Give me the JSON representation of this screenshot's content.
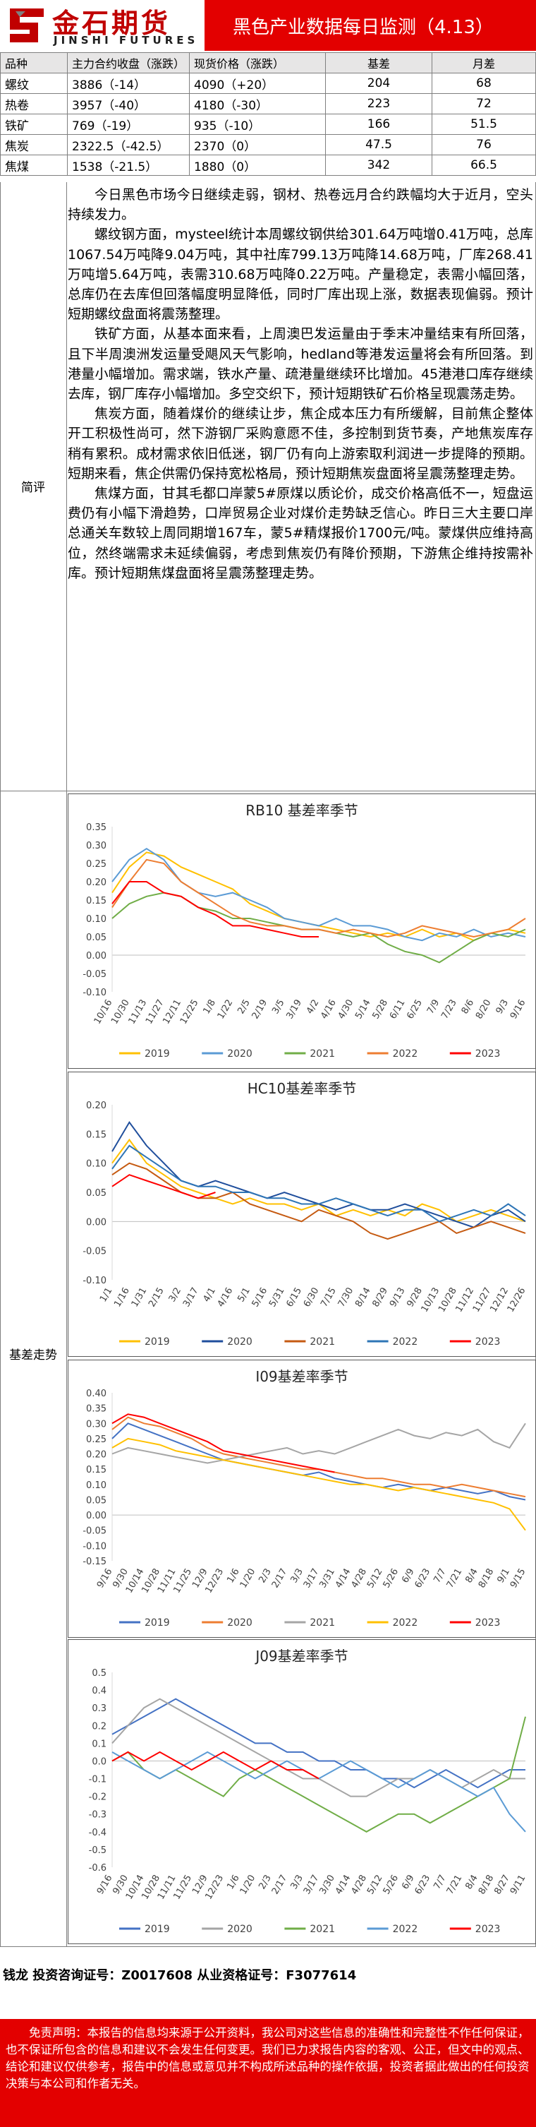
{
  "header": {
    "logo_cn": "金石期货",
    "logo_en": "JINSHI FUTURES",
    "title": "黑色产业数据每日监测（4.13）"
  },
  "price_table": {
    "headers": [
      "品种",
      "主力合约收盘（涨跌）",
      "现货价格（涨跌）",
      "基差",
      "月差"
    ],
    "rows": [
      [
        "螺纹",
        "3886（-14）",
        "4090（+20）",
        "204",
        "68"
      ],
      [
        "热卷",
        "3957（-40）",
        "4180（-30）",
        "223",
        "72"
      ],
      [
        "铁矿",
        "769（-19）",
        "935（-10）",
        "166",
        "51.5"
      ],
      [
        "焦炭",
        "2322.5（-42.5）",
        "2370（0）",
        "47.5",
        "76"
      ],
      [
        "焦煤",
        "1538（-21.5）",
        "1880（0）",
        "342",
        "66.5"
      ]
    ]
  },
  "section_labels": {
    "comment": "简评",
    "basis": "基差走势"
  },
  "commentary": [
    "今日黑色市场今日继续走弱，钢材、热卷远月合约跌幅均大于近月，空头持续发力。",
    "螺纹钢方面，mysteel统计本周螺纹钢供给301.64万吨增0.41万吨，总库1067.54万吨降9.04万吨，其中社库799.13万吨降14.68万吨，厂库268.41万吨增5.64万吨，表需310.68万吨降0.22万吨。产量稳定，表需小幅回落，总库仍在去库但回落幅度明显降低，同时厂库出现上涨，数据表现偏弱。预计短期螺纹盘面将震荡整理。",
    "铁矿方面，从基本面来看，上周澳巴发运量由于季末冲量结束有所回落，且下半周澳洲发运量受飓风天气影响，hedland等港发运量将会有所回落。到港量小幅增加。需求端，铁水产量、疏港量继续环比增加。45港港口库存继续去库，钢厂库存小幅增加。多空交织下，预计短期铁矿石价格呈现震荡走势。",
    "焦炭方面，随着煤价的继续让步，焦企成本压力有所缓解，目前焦企整体开工积极性尚可，然下游钢厂采购意愿不佳，多控制到货节奏，产地焦炭库存稍有累积。成材需求依旧低迷，钢厂仍有向上游索取利润进一步提降的预期。短期来看，焦企供需仍保持宽松格局，预计短期焦炭盘面将呈震荡整理走势。",
    "焦煤方面，甘其毛都口岸蒙5#原煤以质论价，成交价格高低不一，短盘运费仍有小幅下滑趋势，口岸贸易企业对煤价走势缺乏信心。昨日三大主要口岸总通关车数较上周同期增167车，蒙5#精煤报价1700元/吨。蒙煤供应维持高位，然终端需求未延续偏弱，考虑到焦炭仍有降价预期，下游焦企维持按需补库。预计短期焦煤盘面将呈震荡整理走势。"
  ],
  "chart_data": [
    {
      "type": "line",
      "title": "RB10 基差率季节",
      "ylim": [
        -0.1,
        0.35
      ],
      "yticks": [
        "0.35",
        "0.30",
        "0.25",
        "0.20",
        "0.15",
        "0.10",
        "0.05",
        "0.00",
        "-0.05",
        "-0.10"
      ],
      "x_ticks": [
        "10/16",
        "10/30",
        "11/13",
        "11/27",
        "12/11",
        "12/25",
        "1/8",
        "1/22",
        "2/5",
        "2/19",
        "3/5",
        "3/19",
        "4/2",
        "4/16",
        "4/30",
        "5/14",
        "5/28",
        "6/11",
        "6/25",
        "7/9",
        "7/23",
        "8/6",
        "8/20",
        "9/3",
        "9/16"
      ],
      "legend_position": "bottom",
      "series": [
        {
          "name": "2019",
          "color": "#ffc000",
          "values": [
            0.17,
            0.24,
            0.28,
            0.27,
            0.24,
            0.22,
            0.2,
            0.18,
            0.14,
            0.12,
            0.1,
            0.09,
            0.08,
            0.07,
            0.06,
            0.05,
            0.06,
            0.05,
            0.07,
            0.05,
            0.06,
            0.04,
            0.06,
            0.07,
            0.06
          ]
        },
        {
          "name": "2020",
          "color": "#5b9bd5",
          "values": [
            0.2,
            0.26,
            0.29,
            0.26,
            0.2,
            0.17,
            0.16,
            0.17,
            0.15,
            0.13,
            0.1,
            0.09,
            0.08,
            0.1,
            0.08,
            0.08,
            0.07,
            0.05,
            0.04,
            0.06,
            0.05,
            0.07,
            0.05,
            0.06,
            0.05
          ]
        },
        {
          "name": "2021",
          "color": "#70ad47",
          "values": [
            0.1,
            0.14,
            0.16,
            0.17,
            0.16,
            0.13,
            0.12,
            0.1,
            0.1,
            0.09,
            0.08,
            0.07,
            0.07,
            0.06,
            0.05,
            0.06,
            0.03,
            0.01,
            0.0,
            -0.02,
            0.01,
            0.04,
            0.06,
            0.05,
            0.07
          ]
        },
        {
          "name": "2022",
          "color": "#ed7d31",
          "values": [
            0.13,
            0.2,
            0.26,
            0.25,
            0.2,
            0.17,
            0.14,
            0.11,
            0.09,
            0.08,
            0.08,
            0.07,
            0.07,
            0.06,
            0.07,
            0.06,
            0.05,
            0.06,
            0.08,
            0.07,
            0.06,
            0.05,
            0.06,
            0.07,
            0.1
          ]
        },
        {
          "name": "2023",
          "color": "#ff0000",
          "values": [
            0.14,
            0.2,
            0.2,
            0.17,
            0.16,
            0.13,
            0.11,
            0.08,
            0.08,
            0.07,
            0.06,
            0.05,
            0.05,
            null,
            null,
            null,
            null,
            null,
            null,
            null,
            null,
            null,
            null,
            null,
            null
          ]
        }
      ]
    },
    {
      "type": "line",
      "title": "HC10基差率季节",
      "ylim": [
        -0.1,
        0.2
      ],
      "yticks": [
        "0.20",
        "0.15",
        "0.10",
        "0.05",
        "0.00",
        "-0.05",
        "-0.10"
      ],
      "x_ticks": [
        "1/1",
        "1/16",
        "1/31",
        "2/15",
        "3/2",
        "3/17",
        "4/1",
        "4/16",
        "5/1",
        "5/16",
        "5/31",
        "6/15",
        "6/30",
        "7/15",
        "7/30",
        "8/14",
        "8/29",
        "9/13",
        "9/28",
        "10/13",
        "10/28",
        "11/12",
        "11/27",
        "12/12",
        "12/26"
      ],
      "legend_position": "bottom",
      "series": [
        {
          "name": "2019",
          "color": "#ffc000",
          "values": [
            0.1,
            0.14,
            0.1,
            0.08,
            0.06,
            0.05,
            0.04,
            0.03,
            0.04,
            0.03,
            0.03,
            0.02,
            0.03,
            0.01,
            0.02,
            0.01,
            0.02,
            0.01,
            0.03,
            0.02,
            0.0,
            0.01,
            0.02,
            0.01,
            0.0
          ]
        },
        {
          "name": "2020",
          "color": "#1f4e9c",
          "values": [
            0.12,
            0.17,
            0.13,
            0.1,
            0.07,
            0.06,
            0.07,
            0.06,
            0.05,
            0.04,
            0.05,
            0.04,
            0.03,
            0.02,
            0.03,
            0.02,
            0.02,
            0.03,
            0.02,
            0.01,
            0.0,
            -0.01,
            0.01,
            0.02,
            0.0
          ]
        },
        {
          "name": "2021",
          "color": "#c55a11",
          "values": [
            0.08,
            0.1,
            0.09,
            0.07,
            0.05,
            0.04,
            0.04,
            0.05,
            0.03,
            0.02,
            0.01,
            0.0,
            0.02,
            0.01,
            0.0,
            -0.02,
            -0.03,
            -0.02,
            -0.01,
            0.0,
            -0.02,
            -0.01,
            0.0,
            -0.01,
            -0.02
          ]
        },
        {
          "name": "2022",
          "color": "#2e75b6",
          "values": [
            0.09,
            0.13,
            0.11,
            0.09,
            0.07,
            0.06,
            0.06,
            0.05,
            0.05,
            0.04,
            0.04,
            0.03,
            0.03,
            0.04,
            0.03,
            0.02,
            0.01,
            0.02,
            0.02,
            0.0,
            0.01,
            0.02,
            0.01,
            0.03,
            0.01
          ]
        },
        {
          "name": "2023",
          "color": "#ff0000",
          "values": [
            0.06,
            0.08,
            0.07,
            0.06,
            0.05,
            0.04,
            0.05,
            null,
            null,
            null,
            null,
            null,
            null,
            null,
            null,
            null,
            null,
            null,
            null,
            null,
            null,
            null,
            null,
            null,
            null
          ]
        }
      ]
    },
    {
      "type": "line",
      "title": "I09基差率季节",
      "ylim": [
        -0.15,
        0.4
      ],
      "yticks": [
        "0.40",
        "0.35",
        "0.30",
        "0.25",
        "0.20",
        "0.15",
        "0.10",
        "0.05",
        "0.00",
        "-0.05",
        "-0.10",
        "-0.15"
      ],
      "x_ticks": [
        "9/16",
        "9/30",
        "10/14",
        "10/28",
        "11/11",
        "11/25",
        "12/9",
        "12/23",
        "1/6",
        "1/20",
        "2/3",
        "2/17",
        "3/3",
        "3/17",
        "3/31",
        "4/14",
        "4/28",
        "5/12",
        "5/26",
        "6/9",
        "6/23",
        "7/7",
        "7/21",
        "8/4",
        "8/18",
        "9/1",
        "9/15"
      ],
      "legend_position": "bottom",
      "series": [
        {
          "name": "2019",
          "color": "#4472c4",
          "values": [
            0.25,
            0.3,
            0.28,
            0.26,
            0.24,
            0.22,
            0.2,
            0.18,
            0.17,
            0.16,
            0.15,
            0.14,
            0.13,
            0.14,
            0.12,
            0.11,
            0.1,
            0.09,
            0.1,
            0.09,
            0.08,
            0.09,
            0.08,
            0.07,
            0.08,
            0.06,
            0.05
          ]
        },
        {
          "name": "2020",
          "color": "#ed7d31",
          "values": [
            0.28,
            0.32,
            0.3,
            0.29,
            0.27,
            0.25,
            0.22,
            0.2,
            0.19,
            0.18,
            0.17,
            0.16,
            0.15,
            0.15,
            0.14,
            0.13,
            0.12,
            0.12,
            0.11,
            0.1,
            0.1,
            0.09,
            0.1,
            0.09,
            0.08,
            0.07,
            0.06
          ]
        },
        {
          "name": "2021",
          "color": "#a5a5a5",
          "values": [
            0.2,
            0.22,
            0.21,
            0.2,
            0.19,
            0.18,
            0.17,
            0.18,
            0.19,
            0.2,
            0.21,
            0.22,
            0.2,
            0.21,
            0.2,
            0.22,
            0.24,
            0.26,
            0.28,
            0.26,
            0.25,
            0.27,
            0.26,
            0.28,
            0.24,
            0.22,
            0.3
          ]
        },
        {
          "name": "2022",
          "color": "#ffc000",
          "values": [
            0.22,
            0.25,
            0.24,
            0.23,
            0.21,
            0.2,
            0.19,
            0.18,
            0.17,
            0.16,
            0.15,
            0.14,
            0.13,
            0.12,
            0.11,
            0.1,
            0.1,
            0.09,
            0.08,
            0.09,
            0.08,
            0.07,
            0.06,
            0.05,
            0.04,
            0.02,
            -0.05
          ]
        },
        {
          "name": "2023",
          "color": "#ff0000",
          "values": [
            0.3,
            0.33,
            0.32,
            0.3,
            0.28,
            0.26,
            0.24,
            0.21,
            0.2,
            0.19,
            0.18,
            0.17,
            0.16,
            0.15,
            0.14,
            null,
            null,
            null,
            null,
            null,
            null,
            null,
            null,
            null,
            null,
            null,
            null
          ]
        }
      ]
    },
    {
      "type": "line",
      "title": "J09基差率季节",
      "ylim": [
        -0.6,
        0.5
      ],
      "yticks": [
        "0.5",
        "0.4",
        "0.3",
        "0.2",
        "0.1",
        "0.0",
        "-0.1",
        "-0.2",
        "-0.3",
        "-0.4",
        "-0.5",
        "-0.6"
      ],
      "x_ticks": [
        "9/16",
        "9/30",
        "10/14",
        "10/28",
        "11/11",
        "11/25",
        "12/9",
        "12/23",
        "1/6",
        "1/20",
        "2/3",
        "2/17",
        "3/3",
        "3/17",
        "3/30",
        "4/14",
        "4/28",
        "5/12",
        "5/26",
        "6/9",
        "6/23",
        "7/7",
        "7/21",
        "8/4",
        "8/18",
        "8/27",
        "9/11"
      ],
      "legend_position": "bottom",
      "series": [
        {
          "name": "2019",
          "color": "#4472c4",
          "values": [
            0.15,
            0.2,
            0.25,
            0.3,
            0.35,
            0.3,
            0.25,
            0.2,
            0.15,
            0.1,
            0.1,
            0.05,
            0.05,
            0.0,
            0.0,
            -0.05,
            -0.05,
            -0.1,
            -0.1,
            -0.15,
            -0.1,
            -0.05,
            -0.1,
            -0.15,
            -0.1,
            -0.05,
            -0.05
          ]
        },
        {
          "name": "2020",
          "color": "#a5a5a5",
          "values": [
            0.1,
            0.2,
            0.3,
            0.35,
            0.3,
            0.25,
            0.2,
            0.15,
            0.1,
            0.05,
            0.0,
            -0.05,
            -0.1,
            -0.1,
            -0.15,
            -0.2,
            -0.2,
            -0.15,
            -0.1,
            -0.1,
            -0.05,
            -0.1,
            -0.15,
            -0.1,
            -0.05,
            -0.1,
            -0.1
          ]
        },
        {
          "name": "2021",
          "color": "#70ad47",
          "values": [
            0.0,
            0.05,
            -0.05,
            -0.1,
            -0.05,
            -0.1,
            -0.15,
            -0.2,
            -0.1,
            -0.05,
            -0.1,
            -0.15,
            -0.2,
            -0.25,
            -0.3,
            -0.35,
            -0.4,
            -0.35,
            -0.3,
            -0.3,
            -0.35,
            -0.3,
            -0.25,
            -0.2,
            -0.15,
            -0.1,
            0.25
          ]
        },
        {
          "name": "2022",
          "color": "#5b9bd5",
          "values": [
            0.05,
            0.0,
            -0.05,
            -0.1,
            -0.05,
            0.0,
            0.05,
            0.0,
            -0.05,
            -0.1,
            -0.05,
            0.0,
            -0.05,
            -0.1,
            -0.05,
            0.0,
            -0.05,
            -0.1,
            -0.15,
            -0.1,
            -0.05,
            -0.1,
            -0.15,
            -0.2,
            -0.15,
            -0.3,
            -0.4
          ]
        },
        {
          "name": "2023",
          "color": "#ff0000",
          "values": [
            0.0,
            0.05,
            0.0,
            0.05,
            0.0,
            -0.05,
            0.0,
            0.05,
            0.0,
            -0.05,
            0.0,
            -0.05,
            -0.05,
            -0.1,
            null,
            null,
            null,
            null,
            null,
            null,
            null,
            null,
            null,
            null,
            null,
            null,
            null
          ]
        }
      ]
    }
  ],
  "footer": {
    "contact": "钱龙  投资咨询证号：Z0017608  从业资格证号：F3077614",
    "disclaimer": "免责声明：本报告的信息均来源于公开资料，我公司对这些信息的准确性和完整性不作任何保证，也不保证所包含的信息和建议不会发生任何变更。我们已力求报告内容的客观、公正，但文中的观点、结论和建议仅供参考，报告中的信息或意见并不构成所述品种的操作依据，投资者据此做出的任何投资决策与本公司和作者无关。"
  }
}
